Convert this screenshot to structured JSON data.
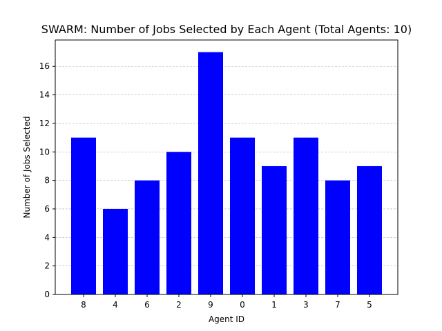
{
  "chart_data": {
    "type": "bar",
    "title": "SWARM: Number of Jobs Selected by Each Agent (Total Agents: 10)",
    "xlabel": "Agent ID",
    "ylabel": "Number of Jobs Selected",
    "categories": [
      "8",
      "4",
      "6",
      "2",
      "9",
      "0",
      "1",
      "3",
      "7",
      "5"
    ],
    "values": [
      11,
      6,
      8,
      10,
      17,
      11,
      9,
      11,
      8,
      9
    ],
    "ylim": [
      0,
      17.85
    ],
    "yticks": [
      0,
      2,
      4,
      6,
      8,
      10,
      12,
      14,
      16
    ],
    "grid": "horizontal dashed",
    "bar_color": "#0000ff",
    "grid_color": "#b0b0b0"
  }
}
